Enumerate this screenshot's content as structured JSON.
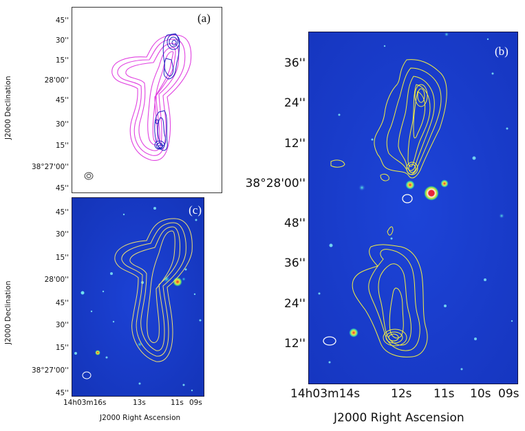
{
  "panels": {
    "a": {
      "label": "(a)",
      "y_ticks": [
        "45''",
        "30''",
        "15''",
        "28'00''",
        "45''",
        "30''",
        "15''",
        "38°27'00''",
        "45''"
      ],
      "ylabel": "J2000 Declination",
      "contour_colors": {
        "outer": "#e040e0",
        "inner": "#2020c0"
      }
    },
    "c": {
      "label": "(c)",
      "y_ticks": [
        "45''",
        "30''",
        "15''",
        "28'00''",
        "45''",
        "30''",
        "15''",
        "38°27'00''",
        "45''"
      ],
      "ylabel": "J2000 Declination",
      "x_ticks": [
        "14h03m16s",
        "13s",
        "11s",
        "09s"
      ],
      "xlabel": "J2000 Right Ascension",
      "contour_color": "#f0e070"
    },
    "b": {
      "label": "(b)",
      "y_ticks": [
        "36''",
        "24''",
        "12''",
        "38°28'00''",
        "48''",
        "36''",
        "24''",
        "12''"
      ],
      "x_ticks": [
        "14h03m14s",
        "12s",
        "11s",
        "10s",
        "09s"
      ],
      "xlabel": "J2000 Right Ascension",
      "contour_color": "#f5f040"
    }
  },
  "colors": {
    "background_blue": "#1a3fd0",
    "star_core": "#e8243a",
    "star_ring": "#f5f5f0",
    "beam": "#ffffff"
  }
}
